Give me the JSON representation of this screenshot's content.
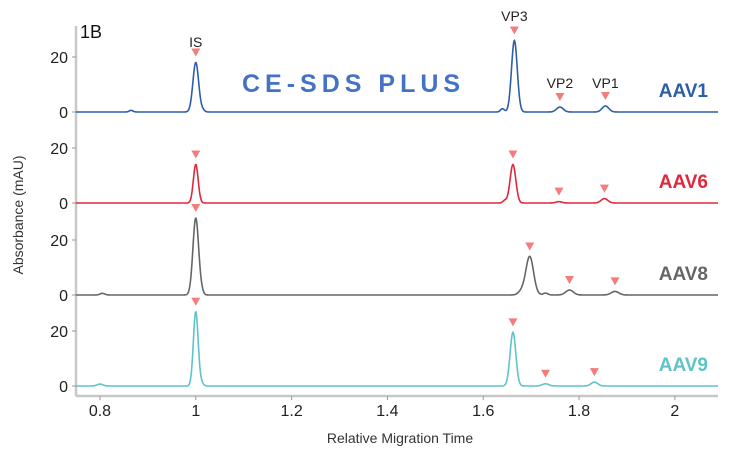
{
  "figure_label": "1B",
  "watermark": "CE-SDS PLUS",
  "marker_color": "#f47c7c",
  "chart_data": {
    "type": "line",
    "title": "CE-SDS PLUS",
    "xlabel": "Relative Migration Time",
    "ylabel": "Absorbance (mAU)",
    "xlim": [
      0.75,
      2.09
    ],
    "x_ticks": [
      "0.8",
      "1",
      "1.2",
      "1.4",
      "1.6",
      "1.8",
      "2"
    ],
    "x_tick_values": [
      0.8,
      1.0,
      1.2,
      1.4,
      1.6,
      1.8,
      2.0
    ],
    "y_ticks": [
      "0",
      "20"
    ],
    "ylim_per_panel": [
      -2,
      30
    ],
    "grid": false,
    "legend_position": "inline right of each trace",
    "peak_labels": [
      "IS",
      "VP3",
      "VP2",
      "VP1"
    ],
    "series": [
      {
        "name": "AAV1",
        "color": "#2f5ea8",
        "peaks": [
          {
            "label": "IS",
            "x": 1.0,
            "y": 18,
            "width": 0.006
          },
          {
            "label": "",
            "x": 1.64,
            "y": 1.2,
            "width": 0.004
          },
          {
            "label": "VP3",
            "x": 1.665,
            "y": 26,
            "width": 0.006
          },
          {
            "label": "VP2",
            "x": 1.76,
            "y": 1.8,
            "width": 0.007
          },
          {
            "label": "VP1",
            "x": 1.855,
            "y": 2.2,
            "width": 0.007
          },
          {
            "label": "",
            "x": 0.865,
            "y": 0.6,
            "width": 0.004
          },
          {
            "label": "",
            "x": 1.015,
            "y": 0.6,
            "width": 0.004
          }
        ],
        "markers_x": [
          1.0,
          1.665,
          1.76,
          1.855
        ]
      },
      {
        "name": "AAV6",
        "color": "#e0283c",
        "peaks": [
          {
            "label": "IS",
            "x": 1.0,
            "y": 14,
            "width": 0.005
          },
          {
            "label": "",
            "x": 1.645,
            "y": 0.9,
            "width": 0.004
          },
          {
            "label": "VP3",
            "x": 1.662,
            "y": 14,
            "width": 0.006
          },
          {
            "label": "VP2",
            "x": 1.758,
            "y": 0.5,
            "width": 0.006
          },
          {
            "label": "VP1",
            "x": 1.853,
            "y": 1.6,
            "width": 0.007
          }
        ],
        "markers_x": [
          1.0,
          1.662,
          1.758,
          1.853
        ]
      },
      {
        "name": "AAV8",
        "color": "#666666",
        "peaks": [
          {
            "label": "IS",
            "x": 1.0,
            "y": 28,
            "width": 0.006
          },
          {
            "label": "",
            "x": 1.012,
            "y": 1.0,
            "width": 0.004
          },
          {
            "label": "",
            "x": 0.805,
            "y": 0.6,
            "width": 0.005
          },
          {
            "label": "",
            "x": 1.68,
            "y": 1.3,
            "width": 0.007
          },
          {
            "label": "VP3",
            "x": 1.697,
            "y": 14,
            "width": 0.008
          },
          {
            "label": "",
            "x": 1.73,
            "y": 0.7,
            "width": 0.005
          },
          {
            "label": "VP2",
            "x": 1.78,
            "y": 1.8,
            "width": 0.008
          },
          {
            "label": "VP1",
            "x": 1.875,
            "y": 1.3,
            "width": 0.008
          }
        ],
        "markers_x": [
          1.0,
          1.697,
          1.78,
          1.875
        ]
      },
      {
        "name": "AAV9",
        "color": "#5ec4c8",
        "peaks": [
          {
            "label": "IS",
            "x": 1.0,
            "y": 27,
            "width": 0.005
          },
          {
            "label": "",
            "x": 1.012,
            "y": 1.0,
            "width": 0.004
          },
          {
            "label": "",
            "x": 0.8,
            "y": 0.7,
            "width": 0.006
          },
          {
            "label": "VP3",
            "x": 1.662,
            "y": 19.5,
            "width": 0.006
          },
          {
            "label": "VP2",
            "x": 1.73,
            "y": 0.8,
            "width": 0.007
          },
          {
            "label": "VP1",
            "x": 1.832,
            "y": 1.4,
            "width": 0.007
          }
        ],
        "markers_x": [
          1.0,
          1.662,
          1.73,
          1.832
        ]
      }
    ]
  }
}
